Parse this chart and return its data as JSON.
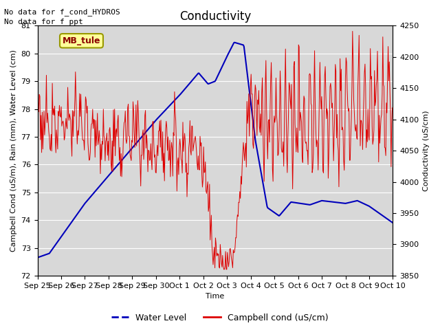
{
  "title": "Conductivity",
  "xlabel": "Time",
  "ylabel_left": "Campbell Cond (uS/m), Rain (mm), Water Level (cm)",
  "ylabel_right": "Conductivity (uS/cm)",
  "annotations": [
    "No data for f_cond_HYDROS",
    "No data for f_ppt"
  ],
  "legend_label1": "Water Level",
  "legend_label2": "Campbell cond (uS/cm)",
  "mb_tule_label": "MB_tule",
  "ylim_left": [
    72.0,
    81.0
  ],
  "ylim_right": [
    3850,
    4250
  ],
  "xtick_labels": [
    "Sep 25",
    "Sep 26",
    "Sep 27",
    "Sep 28",
    "Sep 29",
    "Sep 30",
    "Oct 1",
    "Oct 2",
    "Oct 3",
    "Oct 4",
    "Oct 5",
    "Oct 6",
    "Oct 7",
    "Oct 8",
    "Oct 9",
    "Oct 10"
  ],
  "background_color": "#ffffff",
  "plot_bg_color": "#d8d8d8",
  "grid_color": "#ffffff",
  "water_level_color": "#0000bb",
  "campbell_color": "#dd0000",
  "title_fontsize": 12,
  "axis_fontsize": 8,
  "tick_fontsize": 8
}
